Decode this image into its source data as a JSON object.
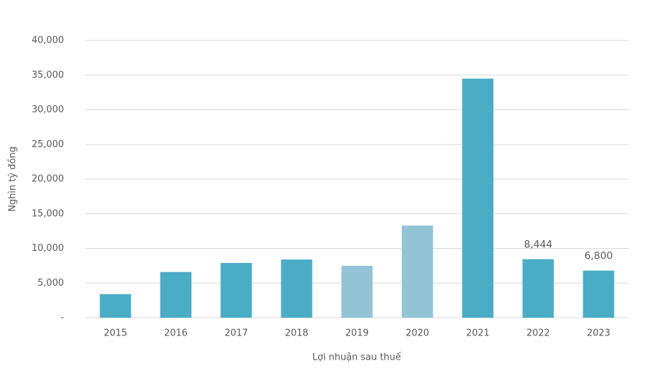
{
  "chart_data": {
    "type": "bar",
    "x_label": "Lợi nhuận sau thuế",
    "y_label": "Nghìn tỷ đồng",
    "categories": [
      "2015",
      "2016",
      "2017",
      "2018",
      "2019",
      "2020",
      "2021",
      "2022",
      "2023"
    ],
    "values": [
      3400,
      6600,
      7900,
      8400,
      7500,
      13300,
      34500,
      8444,
      6800
    ],
    "value_labels": [
      null,
      null,
      null,
      null,
      null,
      null,
      null,
      "8,444",
      "6,800"
    ],
    "colors": [
      "#4bacc6",
      "#4bacc6",
      "#4bacc6",
      "#4bacc6",
      "#93c4d5",
      "#93c4d5",
      "#4bacc6",
      "#4bacc6",
      "#4bacc6"
    ],
    "ylim": [
      0,
      40000
    ],
    "yticks": [
      {
        "value": 0,
        "label": "-"
      },
      {
        "value": 5000,
        "label": "5,000"
      },
      {
        "value": 10000,
        "label": "10,000"
      },
      {
        "value": 15000,
        "label": "15,000"
      },
      {
        "value": 20000,
        "label": "20,000"
      },
      {
        "value": 25000,
        "label": "25,000"
      },
      {
        "value": 30000,
        "label": "30,000"
      },
      {
        "value": 35000,
        "label": "35,000"
      },
      {
        "value": 40000,
        "label": "40,000"
      }
    ],
    "grid": true
  }
}
